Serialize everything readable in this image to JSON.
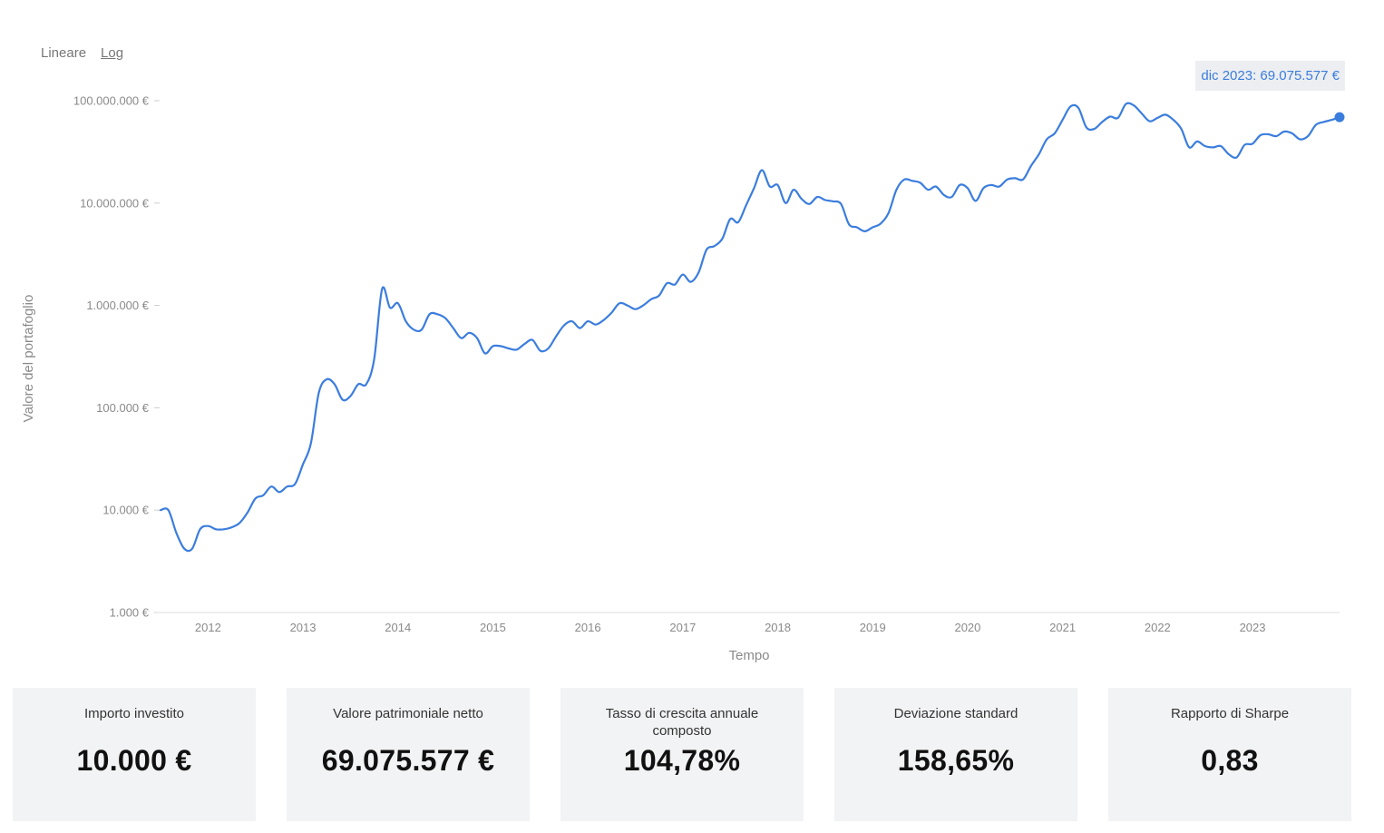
{
  "scale_toggle": {
    "linear_label": "Lineare",
    "log_label": "Log",
    "active": "log"
  },
  "tooltip": {
    "text": "dic 2023: 69.075.577 €"
  },
  "chart_data": {
    "type": "line",
    "ylabel": "Valore del portafoglio",
    "xlabel": "Tempo",
    "y_scale": "log",
    "ylim": [
      1000,
      100000000
    ],
    "y_ticks": [
      {
        "value": 1000,
        "label": "1.000 €"
      },
      {
        "value": 10000,
        "label": "10.000 €"
      },
      {
        "value": 100000,
        "label": "100.000 €"
      },
      {
        "value": 1000000,
        "label": "1.000.000 €"
      },
      {
        "value": 10000000,
        "label": "10.000.000 €"
      },
      {
        "value": 100000000,
        "label": "100.000.000 €"
      }
    ],
    "xlim": [
      "2011-07",
      "2023-12"
    ],
    "x_ticks": [
      {
        "value": "2012-01",
        "label": "2012"
      },
      {
        "value": "2013-01",
        "label": "2013"
      },
      {
        "value": "2014-01",
        "label": "2014"
      },
      {
        "value": "2015-01",
        "label": "2015"
      },
      {
        "value": "2016-01",
        "label": "2016"
      },
      {
        "value": "2017-01",
        "label": "2017"
      },
      {
        "value": "2018-01",
        "label": "2018"
      },
      {
        "value": "2019-01",
        "label": "2019"
      },
      {
        "value": "2020-01",
        "label": "2020"
      },
      {
        "value": "2021-01",
        "label": "2021"
      },
      {
        "value": "2022-01",
        "label": "2022"
      },
      {
        "value": "2023-01",
        "label": "2023"
      }
    ],
    "line_color": "#3b7ddd",
    "series": [
      {
        "points": [
          [
            "2011-07",
            10000
          ],
          [
            "2011-08",
            10000
          ],
          [
            "2011-09",
            6000
          ],
          [
            "2011-10",
            4200
          ],
          [
            "2011-11",
            4200
          ],
          [
            "2011-12",
            6500
          ],
          [
            "2012-01",
            7000
          ],
          [
            "2012-02",
            6500
          ],
          [
            "2012-03",
            6500
          ],
          [
            "2012-04",
            6800
          ],
          [
            "2012-05",
            7500
          ],
          [
            "2012-06",
            9500
          ],
          [
            "2012-07",
            13000
          ],
          [
            "2012-08",
            14000
          ],
          [
            "2012-09",
            17000
          ],
          [
            "2012-10",
            15000
          ],
          [
            "2012-11",
            17000
          ],
          [
            "2012-12",
            18000
          ],
          [
            "2013-01",
            28000
          ],
          [
            "2013-02",
            45000
          ],
          [
            "2013-03",
            140000
          ],
          [
            "2013-04",
            190000
          ],
          [
            "2013-05",
            170000
          ],
          [
            "2013-06",
            120000
          ],
          [
            "2013-07",
            130000
          ],
          [
            "2013-08",
            170000
          ],
          [
            "2013-09",
            170000
          ],
          [
            "2013-10",
            300000
          ],
          [
            "2013-11",
            1450000
          ],
          [
            "2013-12",
            950000
          ],
          [
            "2014-01",
            1050000
          ],
          [
            "2014-02",
            700000
          ],
          [
            "2014-03",
            580000
          ],
          [
            "2014-04",
            580000
          ],
          [
            "2014-05",
            820000
          ],
          [
            "2014-06",
            820000
          ],
          [
            "2014-07",
            750000
          ],
          [
            "2014-08",
            600000
          ],
          [
            "2014-09",
            480000
          ],
          [
            "2014-10",
            540000
          ],
          [
            "2014-11",
            480000
          ],
          [
            "2014-12",
            340000
          ],
          [
            "2015-01",
            400000
          ],
          [
            "2015-02",
            400000
          ],
          [
            "2015-03",
            380000
          ],
          [
            "2015-04",
            370000
          ],
          [
            "2015-05",
            420000
          ],
          [
            "2015-06",
            460000
          ],
          [
            "2015-07",
            360000
          ],
          [
            "2015-08",
            380000
          ],
          [
            "2015-09",
            500000
          ],
          [
            "2015-10",
            640000
          ],
          [
            "2015-11",
            700000
          ],
          [
            "2015-12",
            600000
          ],
          [
            "2016-01",
            700000
          ],
          [
            "2016-02",
            650000
          ],
          [
            "2016-03",
            720000
          ],
          [
            "2016-04",
            850000
          ],
          [
            "2016-05",
            1050000
          ],
          [
            "2016-06",
            1000000
          ],
          [
            "2016-07",
            920000
          ],
          [
            "2016-08",
            1000000
          ],
          [
            "2016-09",
            1150000
          ],
          [
            "2016-10",
            1250000
          ],
          [
            "2016-11",
            1650000
          ],
          [
            "2016-12",
            1600000
          ],
          [
            "2017-01",
            2000000
          ],
          [
            "2017-02",
            1700000
          ],
          [
            "2017-03",
            2100000
          ],
          [
            "2017-04",
            3500000
          ],
          [
            "2017-05",
            3800000
          ],
          [
            "2017-06",
            4500000
          ],
          [
            "2017-07",
            7000000
          ],
          [
            "2017-08",
            6500000
          ],
          [
            "2017-09",
            9500000
          ],
          [
            "2017-10",
            14000000
          ],
          [
            "2017-11",
            21000000
          ],
          [
            "2017-12",
            14500000
          ],
          [
            "2018-01",
            15000000
          ],
          [
            "2018-02",
            10000000
          ],
          [
            "2018-03",
            13500000
          ],
          [
            "2018-04",
            11000000
          ],
          [
            "2018-05",
            9800000
          ],
          [
            "2018-06",
            11500000
          ],
          [
            "2018-07",
            10700000
          ],
          [
            "2018-08",
            10400000
          ],
          [
            "2018-09",
            9800000
          ],
          [
            "2018-10",
            6200000
          ],
          [
            "2018-11",
            5800000
          ],
          [
            "2018-12",
            5300000
          ],
          [
            "2019-01",
            5800000
          ],
          [
            "2019-02",
            6300000
          ],
          [
            "2019-03",
            8000000
          ],
          [
            "2019-04",
            13500000
          ],
          [
            "2019-05",
            17000000
          ],
          [
            "2019-06",
            16500000
          ],
          [
            "2019-07",
            15800000
          ],
          [
            "2019-08",
            13500000
          ],
          [
            "2019-09",
            14500000
          ],
          [
            "2019-10",
            12000000
          ],
          [
            "2019-11",
            11500000
          ],
          [
            "2019-12",
            15000000
          ],
          [
            "2020-01",
            14000000
          ],
          [
            "2020-02",
            10500000
          ],
          [
            "2020-03",
            14000000
          ],
          [
            "2020-04",
            15000000
          ],
          [
            "2020-05",
            14500000
          ],
          [
            "2020-06",
            17000000
          ],
          [
            "2020-07",
            17500000
          ],
          [
            "2020-08",
            17000000
          ],
          [
            "2020-09",
            23000000
          ],
          [
            "2020-10",
            30000000
          ],
          [
            "2020-11",
            42000000
          ],
          [
            "2020-12",
            48000000
          ],
          [
            "2021-01",
            65000000
          ],
          [
            "2021-02",
            88000000
          ],
          [
            "2021-03",
            85000000
          ],
          [
            "2021-04",
            55000000
          ],
          [
            "2021-05",
            53000000
          ],
          [
            "2021-06",
            62000000
          ],
          [
            "2021-07",
            70000000
          ],
          [
            "2021-08",
            68000000
          ],
          [
            "2021-09",
            93000000
          ],
          [
            "2021-10",
            90000000
          ],
          [
            "2021-11",
            75000000
          ],
          [
            "2021-12",
            63000000
          ],
          [
            "2022-01",
            68000000
          ],
          [
            "2022-02",
            73000000
          ],
          [
            "2022-03",
            65000000
          ],
          [
            "2022-04",
            53000000
          ],
          [
            "2022-05",
            35000000
          ],
          [
            "2022-06",
            40000000
          ],
          [
            "2022-07",
            36000000
          ],
          [
            "2022-08",
            35000000
          ],
          [
            "2022-09",
            36000000
          ],
          [
            "2022-10",
            30000000
          ],
          [
            "2022-11",
            28000000
          ],
          [
            "2022-12",
            37000000
          ],
          [
            "2023-01",
            38000000
          ],
          [
            "2023-02",
            46000000
          ],
          [
            "2023-03",
            47000000
          ],
          [
            "2023-04",
            45000000
          ],
          [
            "2023-05",
            50000000
          ],
          [
            "2023-06",
            48000000
          ],
          [
            "2023-07",
            42000000
          ],
          [
            "2023-08",
            45000000
          ],
          [
            "2023-09",
            58000000
          ],
          [
            "2023-10",
            62000000
          ],
          [
            "2023-11",
            65000000
          ],
          [
            "2023-12",
            69075577
          ]
        ]
      }
    ]
  },
  "stats": [
    {
      "label": "Importo investito",
      "value": "10.000 €"
    },
    {
      "label": "Valore patrimoniale netto",
      "value": "69.075.577 €"
    },
    {
      "label": "Tasso di crescita annuale composto",
      "value": "104,78%"
    },
    {
      "label": "Deviazione standard",
      "value": "158,65%"
    },
    {
      "label": "Rapporto di Sharpe",
      "value": "0,83"
    }
  ]
}
